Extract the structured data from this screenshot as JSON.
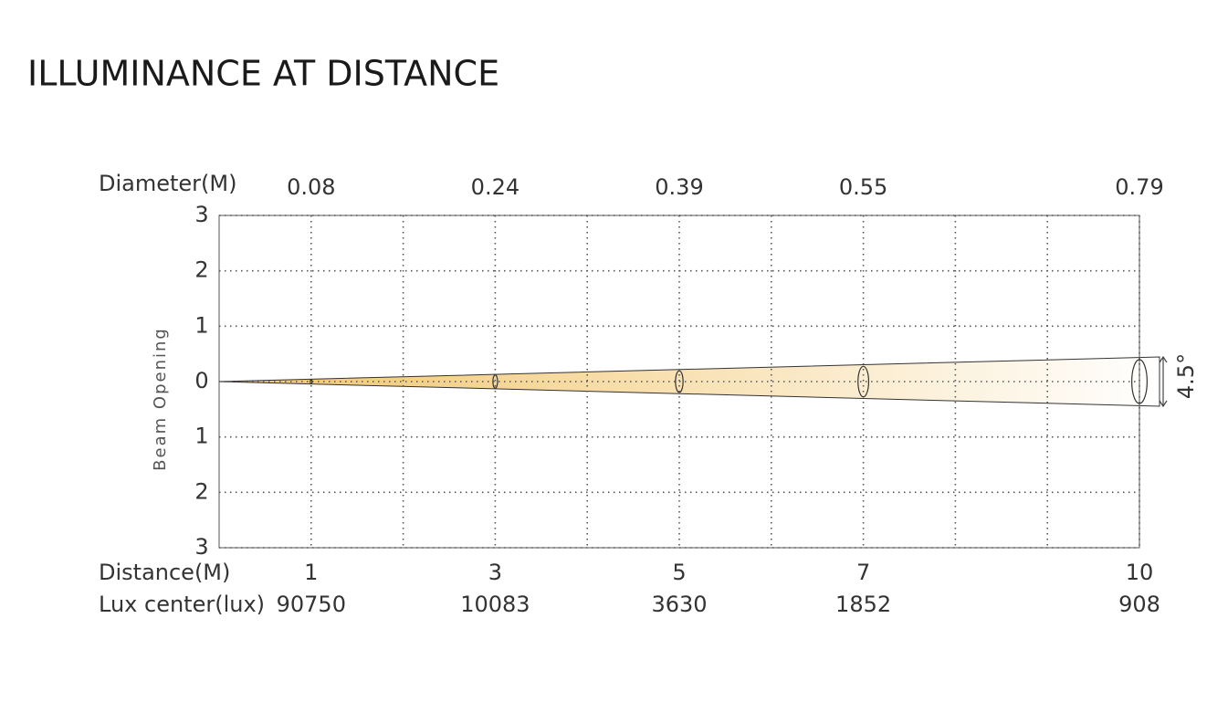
{
  "chart_data": {
    "type": "beam",
    "title": "ILLUMINANCE AT DISTANCE",
    "y_label": "Beam Opening",
    "diameter_label": "Diameter(M)",
    "x_label": "Distance(M)",
    "lux_label": "Lux center(lux)",
    "beam_angle": "4.5°",
    "x": [
      1,
      3,
      5,
      7,
      10
    ],
    "diameters": [
      0.08,
      0.24,
      0.39,
      0.55,
      0.79
    ],
    "lux": [
      90750,
      10083,
      3630,
      1852,
      908
    ],
    "xlim": [
      0,
      10
    ],
    "xticks": [
      1,
      2,
      3,
      4,
      5,
      6,
      7,
      8,
      9,
      10
    ],
    "ylim": [
      -3,
      3
    ],
    "yticks": [
      3,
      2,
      1,
      0,
      {
        "value": -1,
        "label": "1"
      },
      {
        "value": -2,
        "label": "2"
      },
      {
        "value": -3,
        "label": "3"
      }
    ],
    "grid": true,
    "color": "#f2c56a"
  }
}
